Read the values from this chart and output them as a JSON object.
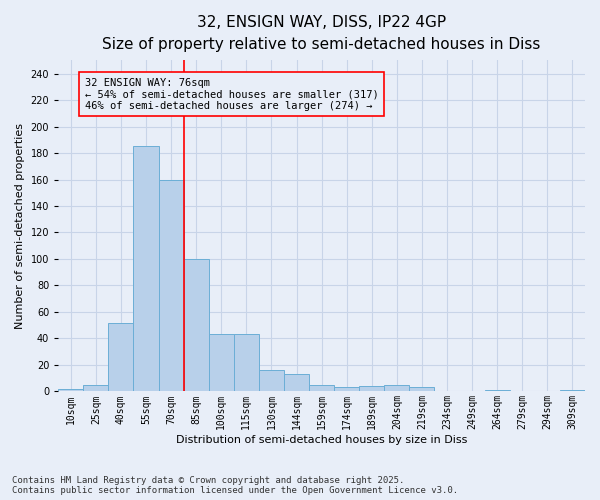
{
  "title_line1": "32, ENSIGN WAY, DISS, IP22 4GP",
  "title_line2": "Size of property relative to semi-detached houses in Diss",
  "xlabel": "Distribution of semi-detached houses by size in Diss",
  "ylabel": "Number of semi-detached properties",
  "categories": [
    "10sqm",
    "25sqm",
    "40sqm",
    "55sqm",
    "70sqm",
    "85sqm",
    "100sqm",
    "115sqm",
    "130sqm",
    "144sqm",
    "159sqm",
    "174sqm",
    "189sqm",
    "204sqm",
    "219sqm",
    "234sqm",
    "249sqm",
    "264sqm",
    "279sqm",
    "294sqm",
    "309sqm"
  ],
  "values": [
    2,
    5,
    52,
    185,
    160,
    100,
    43,
    43,
    16,
    13,
    5,
    3,
    4,
    5,
    3,
    0,
    0,
    1,
    0,
    0,
    1
  ],
  "bar_color": "#b8d0ea",
  "bar_edge_color": "#6baed6",
  "grid_color": "#c8d4e8",
  "background_color": "#e8eef8",
  "vline_x": 4.5,
  "vline_color": "red",
  "annotation_text": "32 ENSIGN WAY: 76sqm\n← 54% of semi-detached houses are smaller (317)\n46% of semi-detached houses are larger (274) →",
  "ylim": [
    0,
    250
  ],
  "yticks": [
    0,
    20,
    40,
    60,
    80,
    100,
    120,
    140,
    160,
    180,
    200,
    220,
    240
  ],
  "footer_line1": "Contains HM Land Registry data © Crown copyright and database right 2025.",
  "footer_line2": "Contains public sector information licensed under the Open Government Licence v3.0.",
  "title_fontsize": 11,
  "subtitle_fontsize": 9,
  "axis_label_fontsize": 8,
  "tick_fontsize": 7,
  "annotation_fontsize": 7.5,
  "footer_fontsize": 6.5
}
